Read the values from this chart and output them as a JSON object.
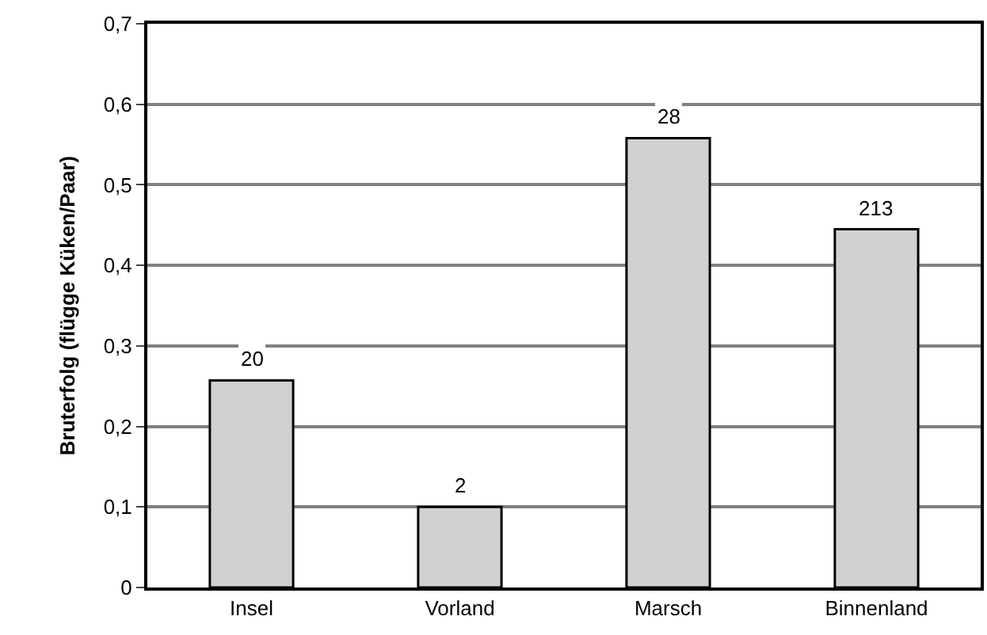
{
  "chart_data": {
    "type": "bar",
    "ylabel": "Bruterfolg (flügge Küken/Paar)",
    "categories": [
      "Insel",
      "Vorland",
      "Marsch",
      "Binnenland"
    ],
    "values": [
      0.257,
      0.1,
      0.558,
      0.445
    ],
    "annotations": [
      {
        "text": "20",
        "x": "Insel",
        "y": 0.257
      },
      {
        "text": "2",
        "x": "Vorland",
        "y": 0.1
      },
      {
        "text": "28",
        "x": "Marsch",
        "y": 0.558
      },
      {
        "text": "213",
        "x": "Binnenland",
        "y": 0.445
      }
    ],
    "color": "#d0d1d3",
    "ylim": [
      0,
      0.7
    ],
    "yticks": [
      {
        "value": 0,
        "label": "0"
      },
      {
        "value": 0.1,
        "label": "0,1"
      },
      {
        "value": 0.2,
        "label": "0,2"
      },
      {
        "value": 0.3,
        "label": "0,3"
      },
      {
        "value": 0.4,
        "label": "0,4"
      },
      {
        "value": 0.5,
        "label": "0,5"
      },
      {
        "value": 0.6,
        "label": "0,6"
      },
      {
        "value": 0.7,
        "label": "0,7"
      }
    ],
    "grid": "y"
  }
}
